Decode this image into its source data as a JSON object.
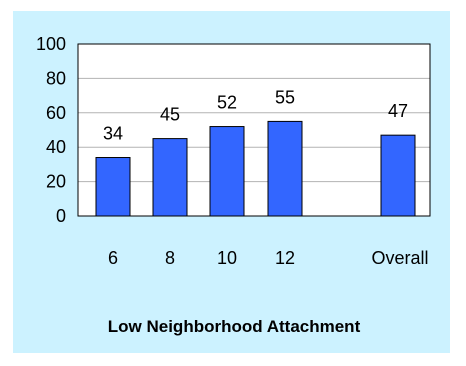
{
  "chart_data": {
    "type": "bar",
    "title": "Low Neighborhood Attachment",
    "xlabel": "",
    "ylabel": "",
    "categories": [
      "6",
      "8",
      "10",
      "12",
      "Overall"
    ],
    "values": [
      34,
      45,
      52,
      55,
      47
    ],
    "data_labels": [
      "34",
      "45",
      "52",
      "55",
      "47"
    ],
    "yticks": [
      "0",
      "20",
      "40",
      "60",
      "80",
      "100"
    ],
    "ylim": [
      0,
      100
    ],
    "grid": true,
    "legend": "none"
  },
  "colors": {
    "background": "#ccf2ff",
    "plot_area": "#ffffff",
    "bar_fill": "#3366ff",
    "bar_edge": "#000000",
    "grid": "#b3b3b3"
  }
}
